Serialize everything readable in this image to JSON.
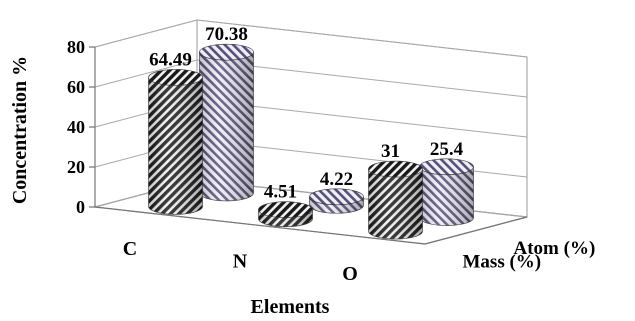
{
  "chart_data": {
    "type": "bar",
    "style": "3d-cylinder",
    "title": "",
    "xlabel": "Elements",
    "ylabel": "Concentration %",
    "ylim": [
      0,
      80
    ],
    "yticks": [
      "0",
      "20",
      "40",
      "60",
      "80"
    ],
    "categories": [
      "C",
      "N",
      "O"
    ],
    "series": [
      {
        "name": "Mass (%)",
        "values": [
          64.49,
          4.51,
          31
        ],
        "value_labels": [
          "64.49",
          "4.51",
          "31"
        ],
        "color": "#1a1a1a",
        "stripe_color": "#f2f2f2"
      },
      {
        "name": "Atom (%)",
        "values": [
          70.38,
          4.22,
          25.4
        ],
        "value_labels": [
          "70.38",
          "4.22",
          "25.4"
        ],
        "color": "#55507a",
        "stripe_color": "#efeef6"
      }
    ],
    "grid": true,
    "legend": "series labels on depth axis (right)"
  }
}
